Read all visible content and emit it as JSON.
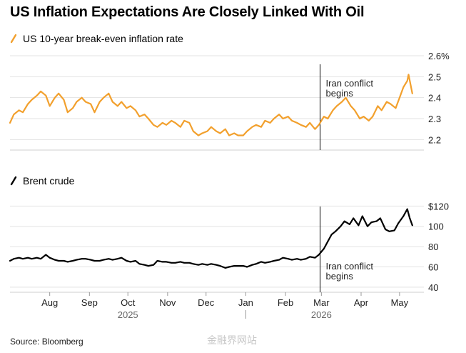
{
  "title": "US Inflation Expectations Are Closely Linked With Oil",
  "source": "Source: Bloomberg",
  "watermark": "金融界网站",
  "colors": {
    "breakeven": "#f2a02d",
    "brent": "#000000",
    "grid": "#e3e3e3",
    "event_line": "#000000"
  },
  "chart_data": [
    {
      "type": "line",
      "legend": "US 10-year break-even inflation rate",
      "ylim": [
        2.15,
        2.6
      ],
      "ytick_values": [
        2.2,
        2.3,
        2.4,
        2.5,
        2.6
      ],
      "ytick_labels": [
        "2.2",
        "2.3",
        "2.4",
        "2.5",
        "2.6%"
      ],
      "annotation": {
        "x": "2026-02-28",
        "lines": [
          "Iran conflict",
          "begins"
        ]
      },
      "series": [
        {
          "values": [
            [
              "2025-07-01",
              2.28
            ],
            [
              "2025-07-04",
              2.32
            ],
            [
              "2025-07-08",
              2.34
            ],
            [
              "2025-07-11",
              2.33
            ],
            [
              "2025-07-15",
              2.37
            ],
            [
              "2025-07-18",
              2.39
            ],
            [
              "2025-07-22",
              2.41
            ],
            [
              "2025-07-25",
              2.43
            ],
            [
              "2025-07-29",
              2.41
            ],
            [
              "2025-08-01",
              2.36
            ],
            [
              "2025-08-05",
              2.4
            ],
            [
              "2025-08-08",
              2.42
            ],
            [
              "2025-08-12",
              2.39
            ],
            [
              "2025-08-15",
              2.33
            ],
            [
              "2025-08-19",
              2.35
            ],
            [
              "2025-08-22",
              2.38
            ],
            [
              "2025-08-26",
              2.4
            ],
            [
              "2025-08-29",
              2.38
            ],
            [
              "2025-09-02",
              2.37
            ],
            [
              "2025-09-05",
              2.33
            ],
            [
              "2025-09-09",
              2.38
            ],
            [
              "2025-09-12",
              2.4
            ],
            [
              "2025-09-16",
              2.42
            ],
            [
              "2025-09-19",
              2.38
            ],
            [
              "2025-09-23",
              2.36
            ],
            [
              "2025-09-26",
              2.38
            ],
            [
              "2025-09-30",
              2.35
            ],
            [
              "2025-10-03",
              2.36
            ],
            [
              "2025-10-07",
              2.34
            ],
            [
              "2025-10-10",
              2.31
            ],
            [
              "2025-10-14",
              2.32
            ],
            [
              "2025-10-17",
              2.3
            ],
            [
              "2025-10-21",
              2.27
            ],
            [
              "2025-10-24",
              2.26
            ],
            [
              "2025-10-28",
              2.28
            ],
            [
              "2025-10-31",
              2.27
            ],
            [
              "2025-11-04",
              2.29
            ],
            [
              "2025-11-07",
              2.28
            ],
            [
              "2025-11-11",
              2.26
            ],
            [
              "2025-11-14",
              2.29
            ],
            [
              "2025-11-18",
              2.28
            ],
            [
              "2025-11-21",
              2.24
            ],
            [
              "2025-11-25",
              2.22
            ],
            [
              "2025-11-28",
              2.23
            ],
            [
              "2025-12-02",
              2.24
            ],
            [
              "2025-12-05",
              2.26
            ],
            [
              "2025-12-09",
              2.24
            ],
            [
              "2025-12-12",
              2.23
            ],
            [
              "2025-12-16",
              2.25
            ],
            [
              "2025-12-19",
              2.22
            ],
            [
              "2025-12-23",
              2.23
            ],
            [
              "2025-12-26",
              2.22
            ],
            [
              "2025-12-30",
              2.22
            ],
            [
              "2026-01-02",
              2.24
            ],
            [
              "2026-01-06",
              2.26
            ],
            [
              "2026-01-09",
              2.27
            ],
            [
              "2026-01-13",
              2.26
            ],
            [
              "2026-01-16",
              2.29
            ],
            [
              "2026-01-20",
              2.28
            ],
            [
              "2026-01-23",
              2.3
            ],
            [
              "2026-01-27",
              2.32
            ],
            [
              "2026-01-30",
              2.3
            ],
            [
              "2026-02-03",
              2.31
            ],
            [
              "2026-02-06",
              2.29
            ],
            [
              "2026-02-10",
              2.28
            ],
            [
              "2026-02-13",
              2.27
            ],
            [
              "2026-02-17",
              2.26
            ],
            [
              "2026-02-20",
              2.28
            ],
            [
              "2026-02-24",
              2.25
            ],
            [
              "2026-02-27",
              2.27
            ],
            [
              "2026-03-03",
              2.31
            ],
            [
              "2026-03-06",
              2.3
            ],
            [
              "2026-03-10",
              2.34
            ],
            [
              "2026-03-13",
              2.36
            ],
            [
              "2026-03-17",
              2.38
            ],
            [
              "2026-03-20",
              2.4
            ],
            [
              "2026-03-24",
              2.36
            ],
            [
              "2026-03-27",
              2.34
            ],
            [
              "2026-03-31",
              2.3
            ],
            [
              "2026-04-03",
              2.31
            ],
            [
              "2026-04-07",
              2.29
            ],
            [
              "2026-04-10",
              2.31
            ],
            [
              "2026-04-14",
              2.36
            ],
            [
              "2026-04-17",
              2.34
            ],
            [
              "2026-04-21",
              2.38
            ],
            [
              "2026-04-24",
              2.37
            ],
            [
              "2026-04-28",
              2.35
            ],
            [
              "2026-05-01",
              2.4
            ],
            [
              "2026-05-04",
              2.45
            ],
            [
              "2026-05-07",
              2.48
            ],
            [
              "2026-05-08",
              2.51
            ],
            [
              "2026-05-11",
              2.42
            ]
          ]
        }
      ]
    },
    {
      "type": "line",
      "legend": "Brent crude",
      "ylim": [
        35,
        128
      ],
      "ytick_values": [
        40,
        60,
        80,
        100,
        120
      ],
      "ytick_labels": [
        "40",
        "60",
        "80",
        "100",
        "$120"
      ],
      "annotation": {
        "x": "2026-02-28",
        "lines": [
          "Iran conflict",
          "begins"
        ]
      },
      "series": [
        {
          "values": [
            [
              "2025-07-01",
              66
            ],
            [
              "2025-07-04",
              68
            ],
            [
              "2025-07-08",
              69
            ],
            [
              "2025-07-11",
              68
            ],
            [
              "2025-07-15",
              69
            ],
            [
              "2025-07-18",
              68
            ],
            [
              "2025-07-22",
              69
            ],
            [
              "2025-07-25",
              68
            ],
            [
              "2025-07-29",
              72
            ],
            [
              "2025-08-01",
              69
            ],
            [
              "2025-08-05",
              67
            ],
            [
              "2025-08-08",
              66
            ],
            [
              "2025-08-12",
              66
            ],
            [
              "2025-08-15",
              65
            ],
            [
              "2025-08-19",
              66
            ],
            [
              "2025-08-22",
              67
            ],
            [
              "2025-08-26",
              68
            ],
            [
              "2025-08-29",
              68
            ],
            [
              "2025-09-02",
              67
            ],
            [
              "2025-09-05",
              66
            ],
            [
              "2025-09-09",
              66
            ],
            [
              "2025-09-12",
              67
            ],
            [
              "2025-09-16",
              68
            ],
            [
              "2025-09-19",
              67
            ],
            [
              "2025-09-23",
              68
            ],
            [
              "2025-09-26",
              69
            ],
            [
              "2025-09-30",
              66
            ],
            [
              "2025-10-03",
              65
            ],
            [
              "2025-10-07",
              66
            ],
            [
              "2025-10-10",
              63
            ],
            [
              "2025-10-14",
              62
            ],
            [
              "2025-10-17",
              61
            ],
            [
              "2025-10-21",
              62
            ],
            [
              "2025-10-24",
              66
            ],
            [
              "2025-10-28",
              65
            ],
            [
              "2025-10-31",
              65
            ],
            [
              "2025-11-04",
              64
            ],
            [
              "2025-11-07",
              64
            ],
            [
              "2025-11-11",
              65
            ],
            [
              "2025-11-14",
              64
            ],
            [
              "2025-11-18",
              64
            ],
            [
              "2025-11-21",
              63
            ],
            [
              "2025-11-25",
              62
            ],
            [
              "2025-11-28",
              63
            ],
            [
              "2025-12-02",
              62
            ],
            [
              "2025-12-05",
              63
            ],
            [
              "2025-12-09",
              62
            ],
            [
              "2025-12-12",
              61
            ],
            [
              "2025-12-16",
              59
            ],
            [
              "2025-12-19",
              60
            ],
            [
              "2025-12-23",
              61
            ],
            [
              "2025-12-26",
              61
            ],
            [
              "2025-12-30",
              61
            ],
            [
              "2026-01-02",
              60
            ],
            [
              "2026-01-06",
              62
            ],
            [
              "2026-01-09",
              63
            ],
            [
              "2026-01-13",
              65
            ],
            [
              "2026-01-16",
              64
            ],
            [
              "2026-01-20",
              65
            ],
            [
              "2026-01-23",
              66
            ],
            [
              "2026-01-27",
              67
            ],
            [
              "2026-01-30",
              69
            ],
            [
              "2026-02-03",
              68
            ],
            [
              "2026-02-06",
              67
            ],
            [
              "2026-02-10",
              68
            ],
            [
              "2026-02-13",
              67
            ],
            [
              "2026-02-17",
              68
            ],
            [
              "2026-02-20",
              70
            ],
            [
              "2026-02-24",
              69
            ],
            [
              "2026-02-27",
              72
            ],
            [
              "2026-03-03",
              78
            ],
            [
              "2026-03-06",
              85
            ],
            [
              "2026-03-09",
              92
            ],
            [
              "2026-03-12",
              95
            ],
            [
              "2026-03-16",
              100
            ],
            [
              "2026-03-19",
              105
            ],
            [
              "2026-03-23",
              102
            ],
            [
              "2026-03-26",
              108
            ],
            [
              "2026-03-30",
              101
            ],
            [
              "2026-04-02",
              110
            ],
            [
              "2026-04-06",
              100
            ],
            [
              "2026-04-09",
              104
            ],
            [
              "2026-04-13",
              105
            ],
            [
              "2026-04-16",
              108
            ],
            [
              "2026-04-20",
              97
            ],
            [
              "2026-04-23",
              95
            ],
            [
              "2026-04-27",
              96
            ],
            [
              "2026-04-30",
              103
            ],
            [
              "2026-05-04",
              110
            ],
            [
              "2026-05-07",
              117
            ],
            [
              "2026-05-09",
              108
            ],
            [
              "2026-05-11",
              101
            ]
          ]
        }
      ]
    }
  ],
  "x_axis": {
    "months": [
      {
        "label": "Aug",
        "date": "2025-08-01"
      },
      {
        "label": "Sep",
        "date": "2025-09-01"
      },
      {
        "label": "Oct",
        "date": "2025-10-01"
      },
      {
        "label": "Nov",
        "date": "2025-11-01"
      },
      {
        "label": "Dec",
        "date": "2025-12-01"
      },
      {
        "label": "Jan",
        "date": "2026-01-01"
      },
      {
        "label": "Feb",
        "date": "2026-02-01"
      },
      {
        "label": "Mar",
        "date": "2026-03-01"
      },
      {
        "label": "Apr",
        "date": "2026-04-01"
      },
      {
        "label": "May",
        "date": "2026-05-01"
      }
    ],
    "years": [
      {
        "label": "2025",
        "date": "2025-10-01"
      },
      {
        "label": "2026",
        "date": "2026-03-01"
      }
    ],
    "year_separator": "2026-01-01",
    "range": [
      "2025-07-01",
      "2026-05-20"
    ]
  }
}
